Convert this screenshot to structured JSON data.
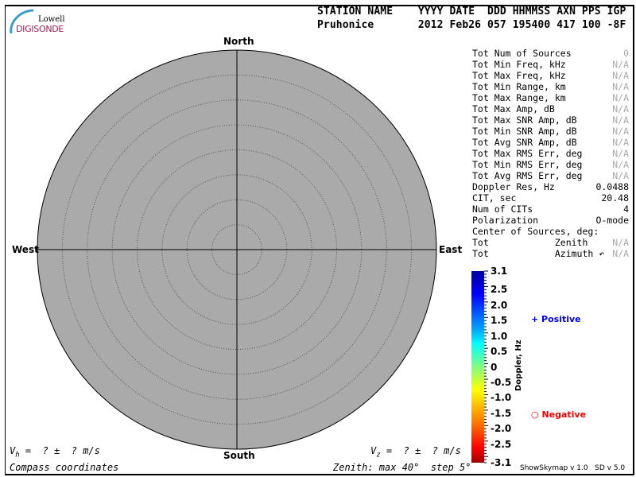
{
  "logo": {
    "line1": "Lowell",
    "line2": "DIGISONDE"
  },
  "header": {
    "line1": "STATION NAME    YYYY DATE  DDD HHMMSS AXN PPS IGP",
    "line2": "Pruhonice       2012 Feb26 057 195400 417 100 -8F"
  },
  "compass": {
    "north": "North",
    "south": "South",
    "east": "East",
    "west": "West"
  },
  "stats": [
    {
      "label": "Tot Num of Sources",
      "value": "0",
      "na": true
    },
    {
      "label": "Tot Min Freq, kHz",
      "value": "N/A",
      "na": true
    },
    {
      "label": "Tot Max Freq, kHz",
      "value": "N/A",
      "na": true
    },
    {
      "label": "Tot Min Range, km",
      "value": "N/A",
      "na": true
    },
    {
      "label": "Tot Max Range, km",
      "value": "N/A",
      "na": true
    },
    {
      "label": "Tot Max Amp, dB",
      "value": "N/A",
      "na": true
    },
    {
      "label": "Tot Max SNR Amp, dB",
      "value": "N/A",
      "na": true
    },
    {
      "label": "Tot Min SNR Amp, dB",
      "value": "N/A",
      "na": true
    },
    {
      "label": "Tot Avg SNR Amp, dB",
      "value": "N/A",
      "na": true
    },
    {
      "label": "Tot Max RMS Err, deg",
      "value": "N/A",
      "na": true
    },
    {
      "label": "Tot Min RMS Err, deg",
      "value": "N/A",
      "na": true
    },
    {
      "label": "Tot Avg RMS Err, deg",
      "value": "N/A",
      "na": true
    },
    {
      "label": "Doppler Res, Hz",
      "value": "0.0488",
      "na": false
    },
    {
      "label": "CIT, sec",
      "value": "20.48",
      "na": false
    },
    {
      "label": "Num of CITs",
      "value": "4",
      "na": false
    },
    {
      "label": "Polarization",
      "value": "O-mode",
      "na": false
    },
    {
      "label": "Center of Sources, deg:",
      "value": "",
      "na": false
    },
    {
      "label": "Tot            Zenith",
      "value": "N/A",
      "na": true
    },
    {
      "label": "Tot            Azimuth ↶",
      "value": "N/A",
      "na": true
    }
  ],
  "colorbar": {
    "label": "Doppler, Hz",
    "max": 3.1,
    "min": -3.1,
    "ticks": [
      "3.1",
      "2.5",
      "2.0",
      "1.5",
      "1.0",
      "0.5",
      "0",
      "-0.5",
      "-1.0",
      "-1.5",
      "-2.0",
      "-2.5",
      "-3.1"
    ],
    "tick_values": [
      3.1,
      2.5,
      2.0,
      1.5,
      1.0,
      0.5,
      0,
      -0.5,
      -1.0,
      -1.5,
      -2.0,
      -2.5,
      -3.1
    ]
  },
  "legend": {
    "positive": "Positive",
    "negative": "Negative",
    "positive_color": "#0000ee",
    "negative_color": "#ee0000"
  },
  "footer": {
    "vh": "V",
    "vh_sub": "h",
    "vh_rest": " =  ? ±  ? m/s",
    "vz": "V",
    "vz_sub": "z",
    "vz_rest": " =  ? ±  ? m/s",
    "coords": "Compass coordinates",
    "zenith": "Zenith: max 40°  step 5°",
    "version": "ShowSkymap v 1.0   SD v 5.0"
  },
  "skymap": {
    "zenith_max_deg": 40,
    "zenith_step_deg": 5,
    "fill": "#aaaaaa"
  }
}
